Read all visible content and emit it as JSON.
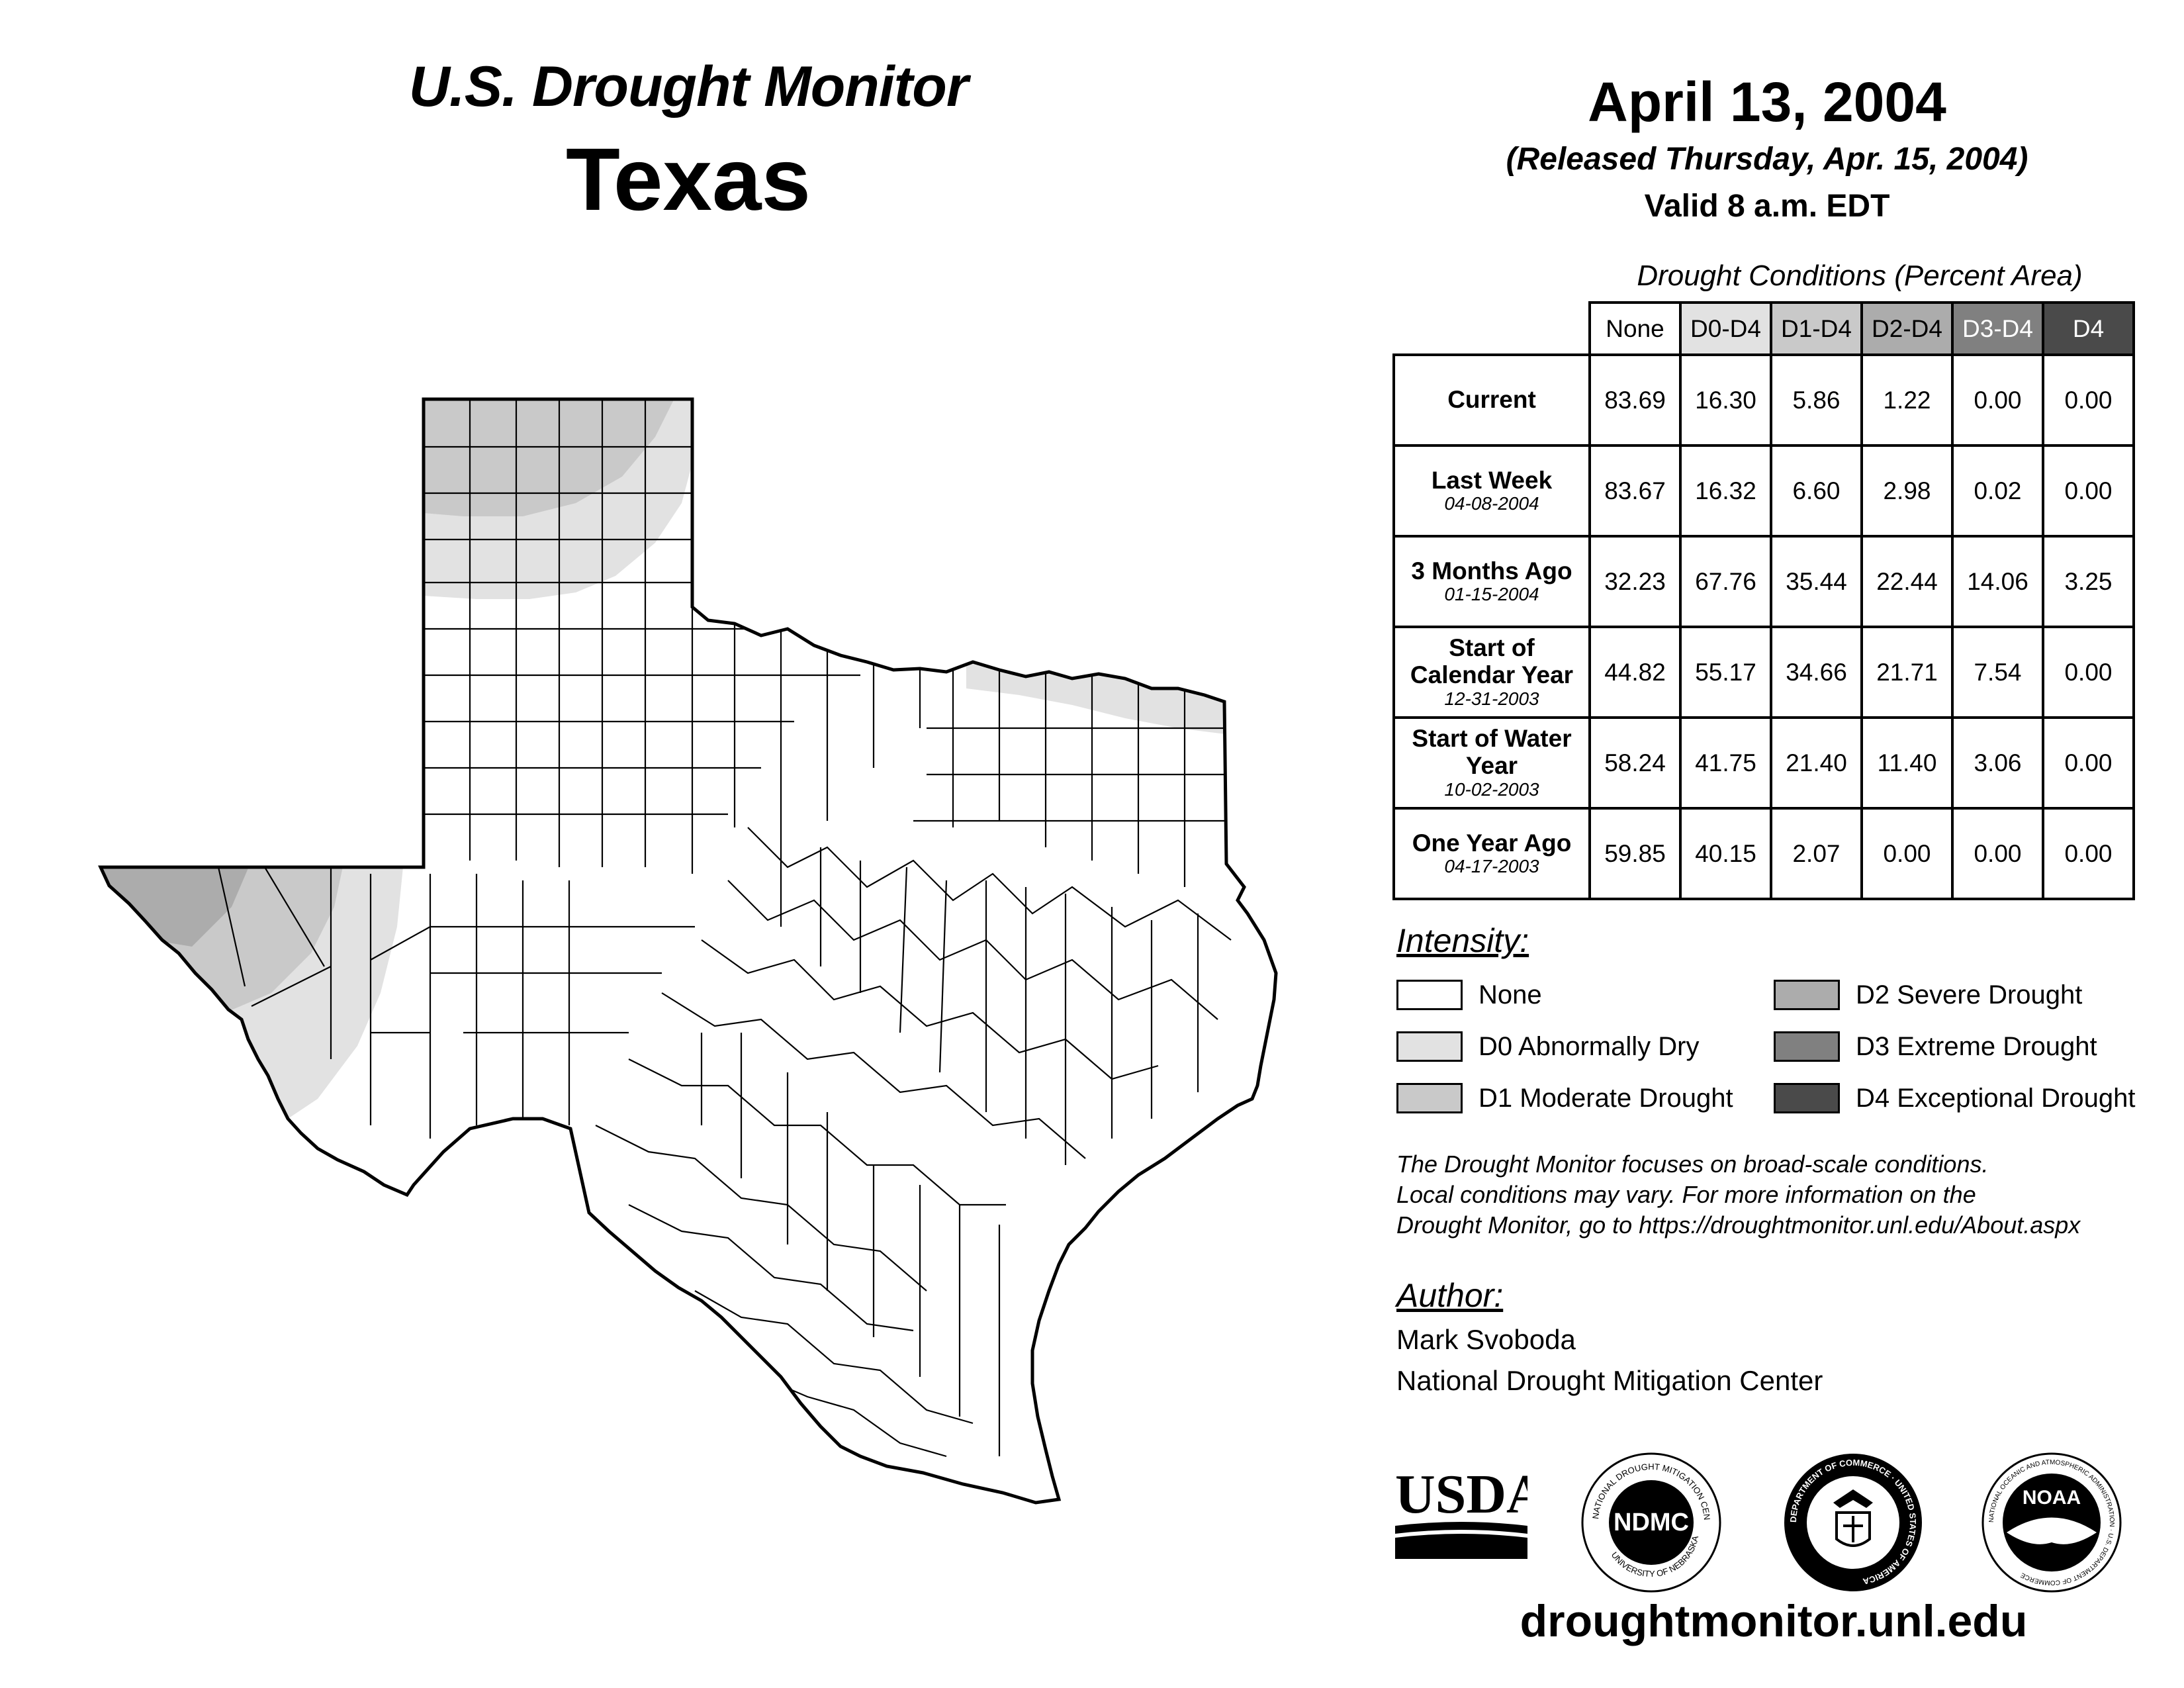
{
  "header": {
    "map_title": "U.S. Drought Monitor",
    "state": "Texas",
    "date": "April 13, 2004",
    "released": "(Released Thursday, Apr. 15, 2004)",
    "valid": "Valid 8 a.m. EDT"
  },
  "table": {
    "caption": "Drought Conditions (Percent Area)",
    "columns": [
      "None",
      "D0-D4",
      "D1-D4",
      "D2-D4",
      "D3-D4",
      "D4"
    ],
    "rows": [
      {
        "label": "Current",
        "date": "",
        "values": [
          "83.69",
          "16.30",
          "5.86",
          "1.22",
          "0.00",
          "0.00"
        ]
      },
      {
        "label": "Last Week",
        "date": "04-08-2004",
        "values": [
          "83.67",
          "16.32",
          "6.60",
          "2.98",
          "0.02",
          "0.00"
        ]
      },
      {
        "label": "3 Months Ago",
        "date": "01-15-2004",
        "values": [
          "32.23",
          "67.76",
          "35.44",
          "22.44",
          "14.06",
          "3.25"
        ]
      },
      {
        "label": "Start of Calendar Year",
        "date": "12-31-2003",
        "values": [
          "44.82",
          "55.17",
          "34.66",
          "21.71",
          "7.54",
          "0.00"
        ]
      },
      {
        "label": "Start of Water Year",
        "date": "10-02-2003",
        "values": [
          "58.24",
          "41.75",
          "21.40",
          "11.40",
          "3.06",
          "0.00"
        ]
      },
      {
        "label": "One Year Ago",
        "date": "04-17-2003",
        "values": [
          "59.85",
          "40.15",
          "2.07",
          "0.00",
          "0.00",
          "0.00"
        ]
      }
    ]
  },
  "legend": {
    "title": "Intensity:",
    "items": [
      {
        "label": "None",
        "color": "#ffffff"
      },
      {
        "label": "D0 Abnormally Dry",
        "color": "#e2e2e2"
      },
      {
        "label": "D1 Moderate Drought",
        "color": "#c9c9c9"
      },
      {
        "label": "D2 Severe Drought",
        "color": "#acacac"
      },
      {
        "label": "D3 Extreme Drought",
        "color": "#808080"
      },
      {
        "label": "D4 Exceptional Drought",
        "color": "#4a4a4a"
      }
    ]
  },
  "note": {
    "line1": "The Drought Monitor focuses on broad-scale conditions.",
    "line2": "Local conditions may vary. For more information on the",
    "line3": "Drought Monitor, go to https://droughtmonitor.unl.edu/About.aspx"
  },
  "author": {
    "label": "Author:",
    "name": "Mark Svoboda",
    "org": "National Drought Mitigation Center"
  },
  "logos": {
    "usda": "USDA",
    "ndmc": "NDMC",
    "ndmc_ring_top": "NATIONAL DROUGHT MITIGATION CENTER",
    "ndmc_ring_bottom": "UNIVERSITY OF NEBRASKA",
    "doc_ring": "DEPARTMENT OF COMMERCE · UNITED STATES OF AMERICA",
    "noaa": "NOAA",
    "noaa_ring": "NATIONAL OCEANIC AND ATMOSPHERIC ADMINISTRATION · U.S. DEPARTMENT OF COMMERCE"
  },
  "website": "droughtmonitor.unl.edu"
}
